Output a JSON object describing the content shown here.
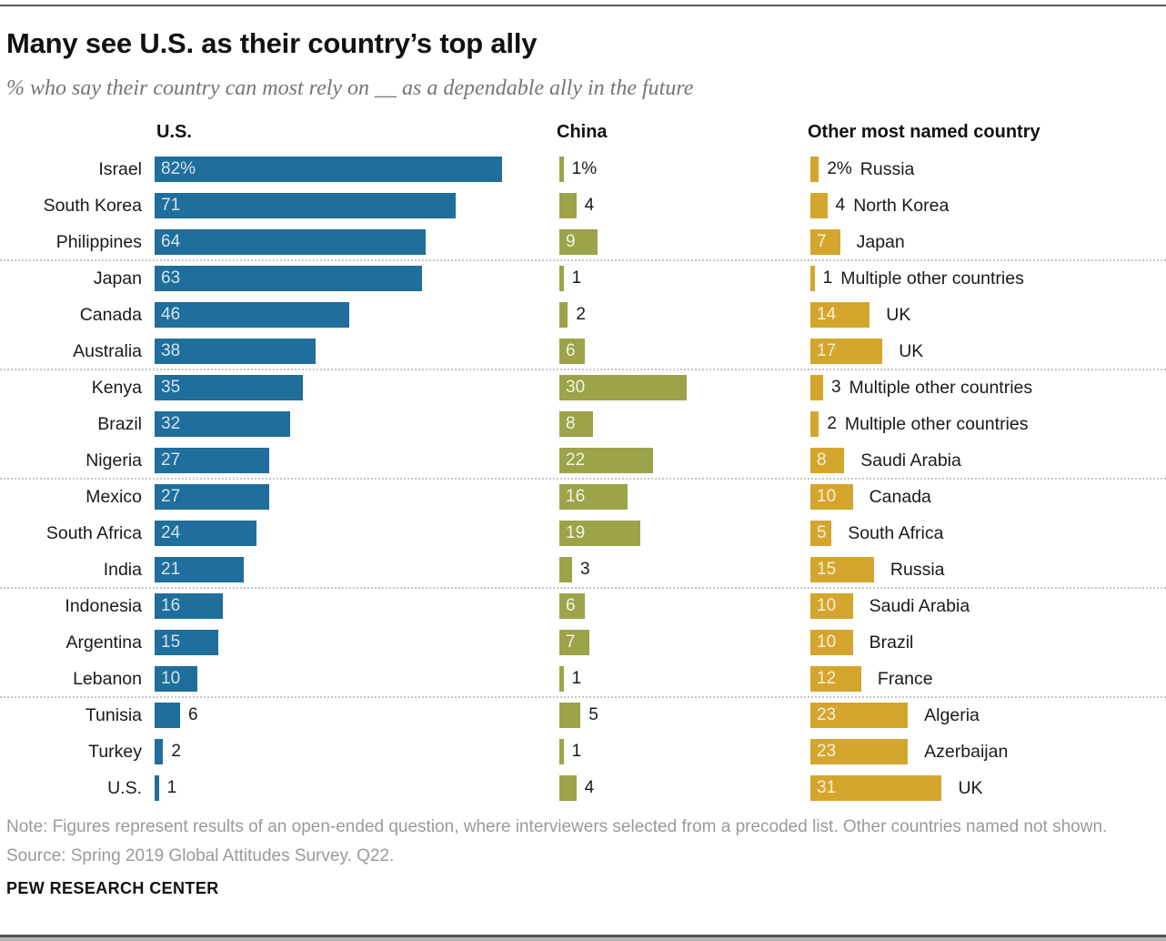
{
  "header": {
    "title": "Many see U.S. as their country’s top ally",
    "subtitle": "% who say their country can most rely on __ as a dependable ally in the future"
  },
  "chart_data": {
    "type": "bar",
    "orientation": "horizontal",
    "unit": "%",
    "columns": [
      {
        "id": "us",
        "label": "U.S.",
        "color": "#1f6e9c"
      },
      {
        "id": "china",
        "label": "China",
        "color": "#9ca349"
      },
      {
        "id": "other",
        "label": "Other most named country",
        "color": "#d5a62d"
      }
    ],
    "group_size": 3,
    "value_label_inside_threshold": {
      "us": 10,
      "china": 6,
      "other": 5
    },
    "rows": [
      {
        "country": "Israel",
        "us": 82,
        "us_display": "82%",
        "china": 1,
        "china_display": "1%",
        "other": 2,
        "other_display": "2%",
        "other_name": "Russia"
      },
      {
        "country": "South Korea",
        "us": 71,
        "us_display": "71",
        "china": 4,
        "china_display": "4",
        "other": 4,
        "other_display": "4",
        "other_name": "North Korea"
      },
      {
        "country": "Philippines",
        "us": 64,
        "us_display": "64",
        "china": 9,
        "china_display": "9",
        "other": 7,
        "other_display": "7",
        "other_name": "Japan"
      },
      {
        "country": "Japan",
        "us": 63,
        "us_display": "63",
        "china": 1,
        "china_display": "1",
        "other": 1,
        "other_display": "1",
        "other_name": "Multiple other countries"
      },
      {
        "country": "Canada",
        "us": 46,
        "us_display": "46",
        "china": 2,
        "china_display": "2",
        "other": 14,
        "other_display": "14",
        "other_name": "UK"
      },
      {
        "country": "Australia",
        "us": 38,
        "us_display": "38",
        "china": 6,
        "china_display": "6",
        "other": 17,
        "other_display": "17",
        "other_name": "UK"
      },
      {
        "country": "Kenya",
        "us": 35,
        "us_display": "35",
        "china": 30,
        "china_display": "30",
        "other": 3,
        "other_display": "3",
        "other_name": "Multiple other countries"
      },
      {
        "country": "Brazil",
        "us": 32,
        "us_display": "32",
        "china": 8,
        "china_display": "8",
        "other": 2,
        "other_display": "2",
        "other_name": "Multiple other countries"
      },
      {
        "country": "Nigeria",
        "us": 27,
        "us_display": "27",
        "china": 22,
        "china_display": "22",
        "other": 8,
        "other_display": "8",
        "other_name": "Saudi Arabia"
      },
      {
        "country": "Mexico",
        "us": 27,
        "us_display": "27",
        "china": 16,
        "china_display": "16",
        "other": 10,
        "other_display": "10",
        "other_name": "Canada"
      },
      {
        "country": "South Africa",
        "us": 24,
        "us_display": "24",
        "china": 19,
        "china_display": "19",
        "other": 5,
        "other_display": "5",
        "other_name": "South Africa"
      },
      {
        "country": "India",
        "us": 21,
        "us_display": "21",
        "china": 3,
        "china_display": "3",
        "other": 15,
        "other_display": "15",
        "other_name": "Russia"
      },
      {
        "country": "Indonesia",
        "us": 16,
        "us_display": "16",
        "china": 6,
        "china_display": "6",
        "other": 10,
        "other_display": "10",
        "other_name": "Saudi Arabia"
      },
      {
        "country": "Argentina",
        "us": 15,
        "us_display": "15",
        "china": 7,
        "china_display": "7",
        "other": 10,
        "other_display": "10",
        "other_name": "Brazil"
      },
      {
        "country": "Lebanon",
        "us": 10,
        "us_display": "10",
        "china": 1,
        "china_display": "1",
        "other": 12,
        "other_display": "12",
        "other_name": "France"
      },
      {
        "country": "Tunisia",
        "us": 6,
        "us_display": "6",
        "china": 5,
        "china_display": "5",
        "other": 23,
        "other_display": "23",
        "other_name": "Algeria"
      },
      {
        "country": "Turkey",
        "us": 2,
        "us_display": "2",
        "china": 1,
        "china_display": "1",
        "other": 23,
        "other_display": "23",
        "other_name": "Azerbaijan"
      },
      {
        "country": "U.S.",
        "us": 1,
        "us_display": "1",
        "china": 4,
        "china_display": "4",
        "other": 31,
        "other_display": "31",
        "other_name": "UK"
      }
    ]
  },
  "footer": {
    "note": "Note: Figures represent results of an open-ended question, where interviewers selected from a precoded list. Other countries named not shown.",
    "source": "Source: Spring 2019 Global Attitudes Survey. Q22.",
    "brand": "PEW RESEARCH CENTER"
  }
}
